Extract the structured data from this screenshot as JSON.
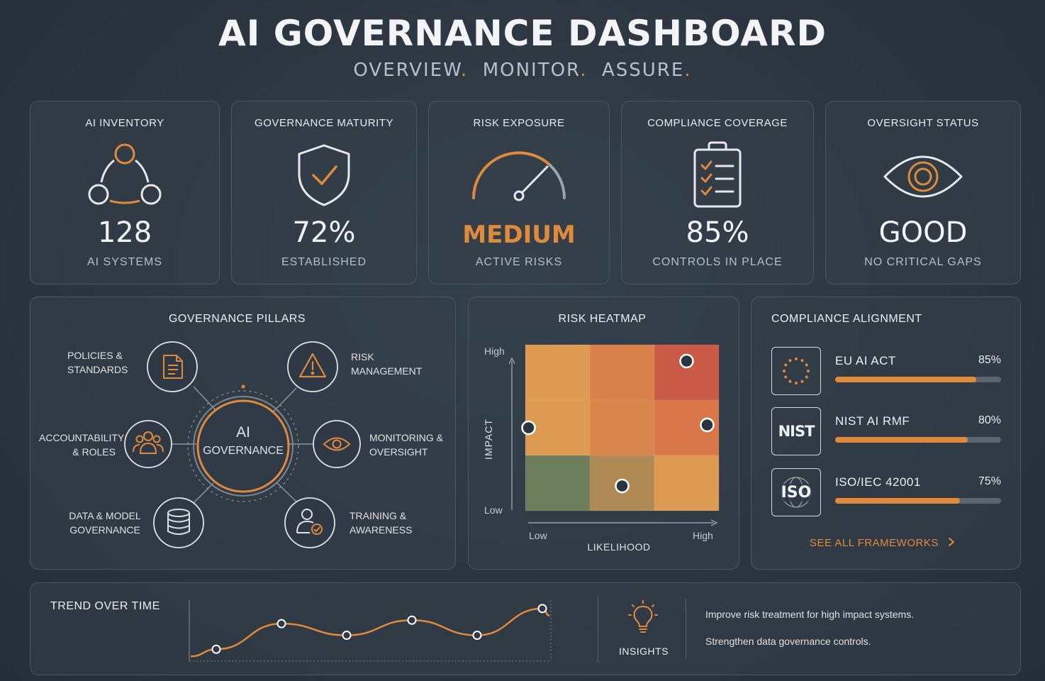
{
  "header": {
    "title": "AI GOVERNANCE DASHBOARD",
    "subtitle_parts": [
      "OVERVIEW",
      "MONITOR",
      "ASSURE"
    ]
  },
  "colors": {
    "accent": "#e08a3c",
    "background": "#2b3540",
    "card_border": "#4b5763"
  },
  "kpis": [
    {
      "title": "AI INVENTORY",
      "icon": "network-nodes-icon",
      "value": "128",
      "sub": "AI SYSTEMS"
    },
    {
      "title": "GOVERNANCE MATURITY",
      "icon": "shield-check-icon",
      "value": "72%",
      "sub": "ESTABLISHED"
    },
    {
      "title": "RISK EXPOSURE",
      "icon": "gauge-icon",
      "value": "MEDIUM",
      "sub": "ACTIVE RISKS"
    },
    {
      "title": "COMPLIANCE COVERAGE",
      "icon": "clipboard-checklist-icon",
      "value": "85%",
      "sub": "CONTROLS IN PLACE"
    },
    {
      "title": "OVERSIGHT STATUS",
      "icon": "eye-icon",
      "value": "GOOD",
      "sub": "NO CRITICAL GAPS"
    }
  ],
  "pillars": {
    "title": "GOVERNANCE PILLARS",
    "center_line1": "AI",
    "center_line2": "GOVERNANCE",
    "items": [
      {
        "line1": "POLICIES &",
        "line2": "STANDARDS",
        "icon": "document-icon"
      },
      {
        "line1": "RISK",
        "line2": "MANAGEMENT",
        "icon": "warning-triangle-icon"
      },
      {
        "line1": "ACCOUNTABILITY",
        "line2": "& ROLES",
        "icon": "people-group-icon"
      },
      {
        "line1": "MONITORING &",
        "line2": "OVERSIGHT",
        "icon": "eye-icon"
      },
      {
        "line1": "DATA & MODEL",
        "line2": "GOVERNANCE",
        "icon": "database-icon"
      },
      {
        "line1": "TRAINING &",
        "line2": "AWARENESS",
        "icon": "user-check-icon"
      }
    ]
  },
  "heatmap": {
    "title": "RISK HEATMAP",
    "y_axis_label": "IMPACT",
    "x_axis_label": "LIKELIHOOD",
    "y_high": "High",
    "y_low": "Low",
    "x_low": "Low",
    "x_high": "High",
    "cell_colors": [
      [
        "#dd9a52",
        "#d9814b",
        "#c95a45"
      ],
      [
        "#dd9a52",
        "#d9874c",
        "#d9774a"
      ],
      [
        "#6e7d5c",
        "#b08a54",
        "#dd9a52"
      ]
    ],
    "risks": [
      {
        "likelihood": 3,
        "impact": 3
      },
      {
        "likelihood": 1,
        "impact": 2
      },
      {
        "likelihood": 3,
        "impact": 2
      },
      {
        "likelihood": 2,
        "impact": 1
      }
    ]
  },
  "compliance": {
    "title": "COMPLIANCE ALIGNMENT",
    "frameworks": [
      {
        "name": "EU AI ACT",
        "pct_label": "85%",
        "pct": 85,
        "logo": "eu-flag-icon"
      },
      {
        "name": "NIST AI RMF",
        "pct_label": "80%",
        "pct": 80,
        "logo_text": "NIST"
      },
      {
        "name": "ISO/IEC 42001",
        "pct_label": "75%",
        "pct": 75,
        "logo_text": "ISO"
      }
    ],
    "link_label": "SEE ALL FRAMEWORKS",
    "link_icon": "chevron-right-icon"
  },
  "trend": {
    "title": "TREND OVER TIME",
    "points": [
      0.18,
      0.62,
      0.42,
      0.68,
      0.42,
      0.88
    ]
  },
  "insights": {
    "label": "INSIGHTS",
    "icon": "lightbulb-icon",
    "items": [
      "Improve risk treatment for high impact systems.",
      "Strengthen data governance controls."
    ]
  }
}
